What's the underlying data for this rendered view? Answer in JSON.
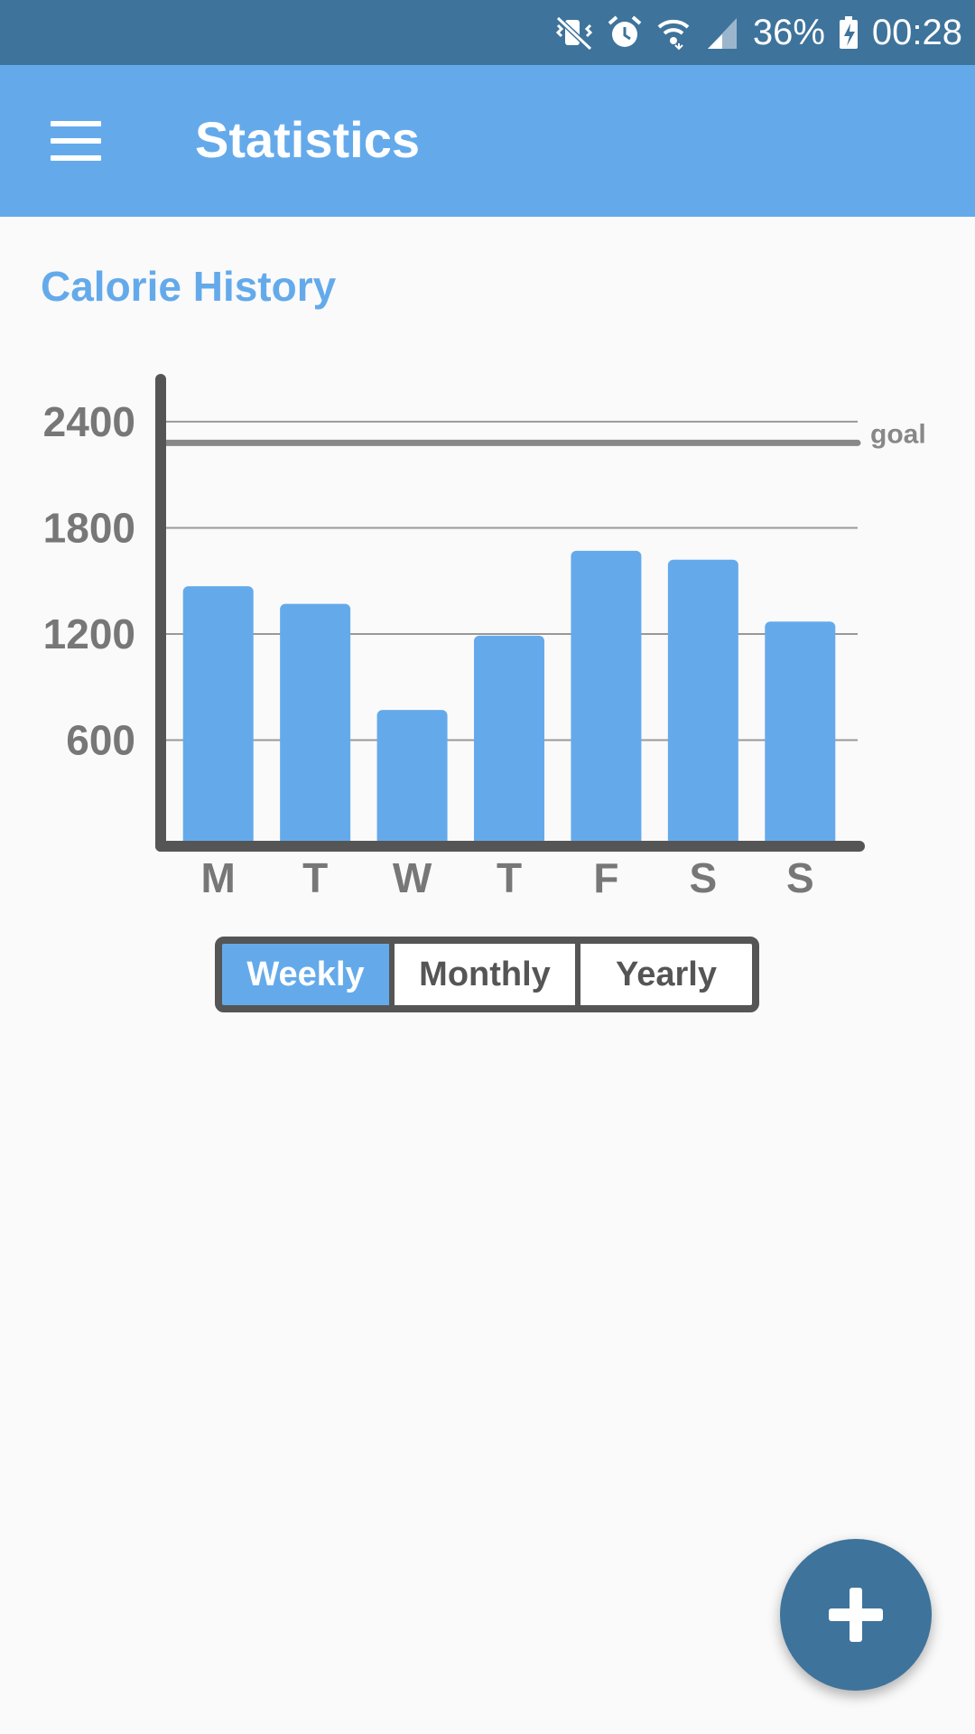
{
  "status_bar": {
    "battery": "36%",
    "time": "00:28",
    "icons": [
      "vibrate-off-icon",
      "alarm-icon",
      "wifi-icon",
      "signal-icon",
      "battery-charging-icon"
    ]
  },
  "app_bar": {
    "title": "Statistics",
    "menu_icon": "menu-icon"
  },
  "section": {
    "title": "Calorie History"
  },
  "chart_data": {
    "type": "bar",
    "categories": [
      "M",
      "T",
      "W",
      "T",
      "F",
      "S",
      "S"
    ],
    "values": [
      1470,
      1370,
      770,
      1190,
      1670,
      1620,
      1270
    ],
    "yticks": [
      600,
      1200,
      1800,
      2400
    ],
    "ylim": [
      0,
      2600
    ],
    "goal": 2280,
    "goal_label": "goal",
    "bar_color": "#64aaeb",
    "axis_color": "#555555",
    "grid": true
  },
  "range_selector": {
    "options": [
      "Weekly",
      "Monthly",
      "Yearly"
    ],
    "selected": "Weekly"
  },
  "fab": {
    "icon": "plus-icon"
  },
  "colors": {
    "status_bar": "#3e739b",
    "app_bar": "#64aaeb",
    "accent": "#64aaeb",
    "fab": "#3e739b"
  }
}
